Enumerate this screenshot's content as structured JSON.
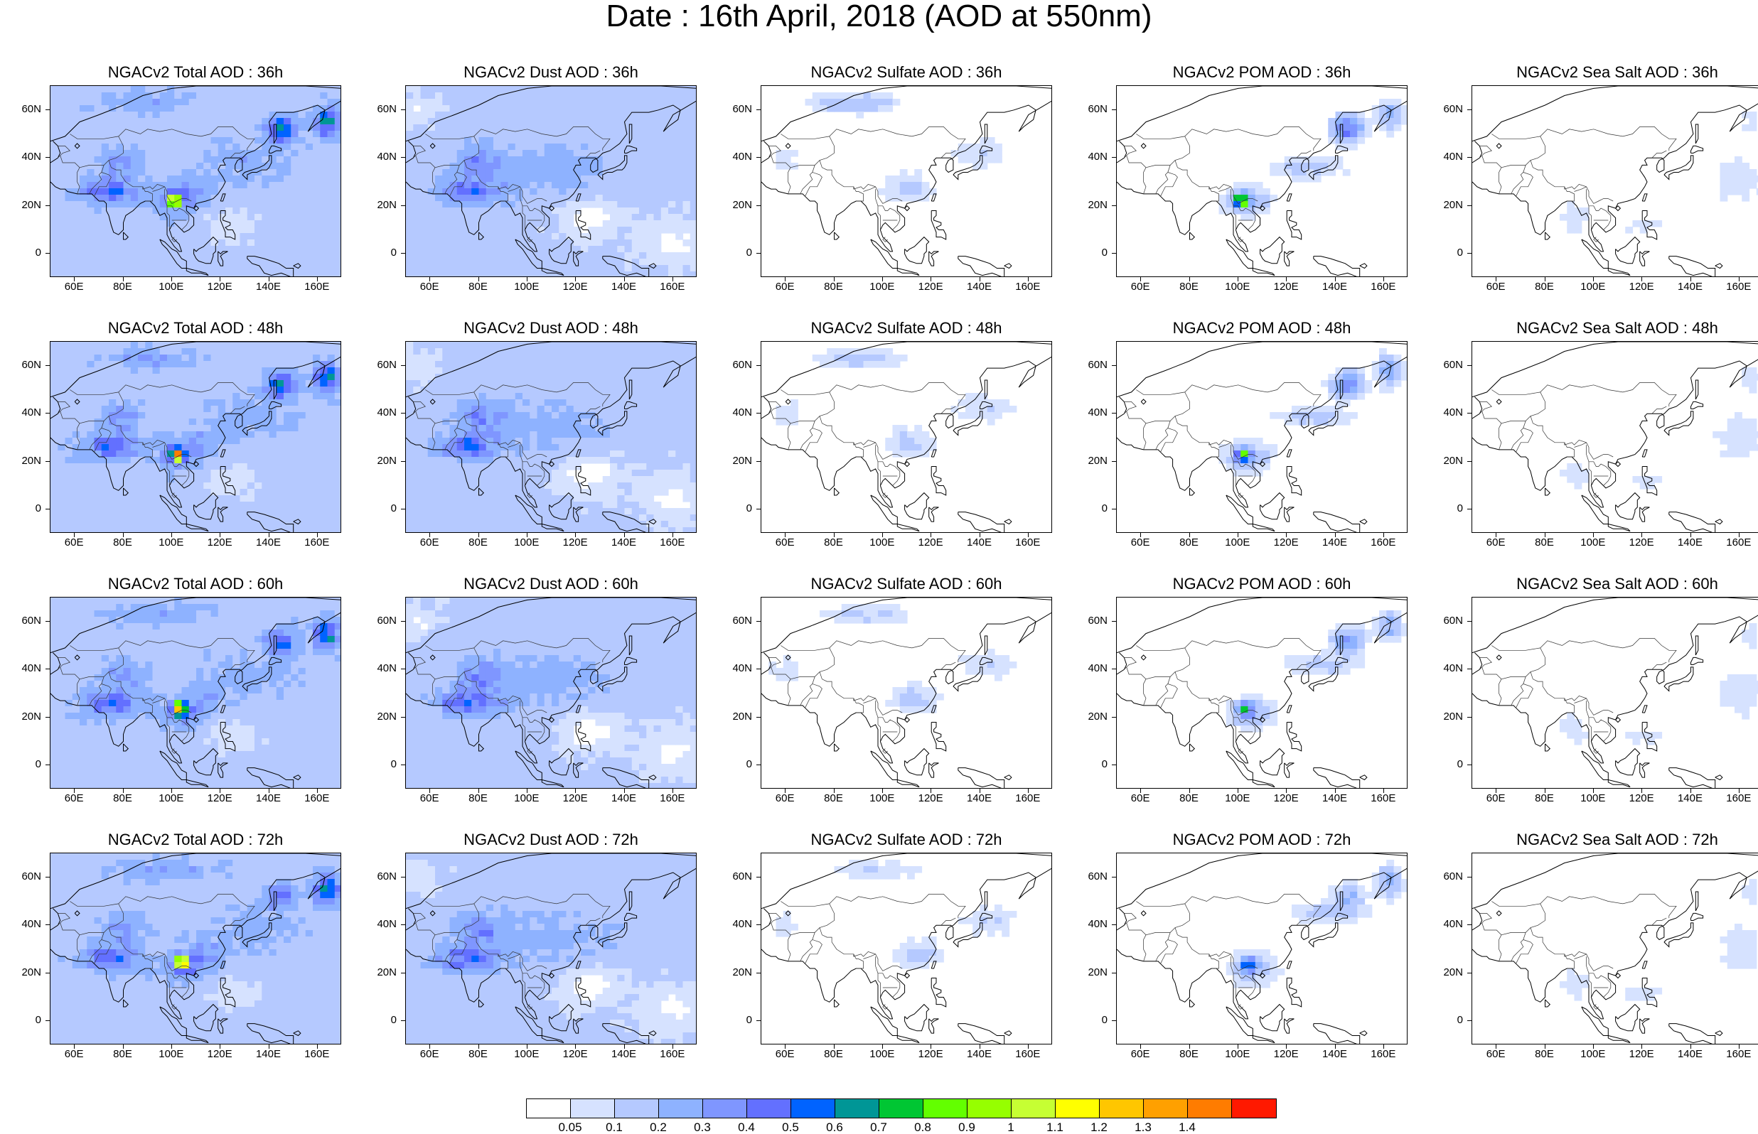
{
  "title": "Date : 16th April, 2018 (AOD at 550nm)",
  "lat_ticks": [
    "60N",
    "40N",
    "20N",
    "0"
  ],
  "lon_ticks": [
    "60E",
    "80E",
    "100E",
    "120E",
    "140E",
    "160E"
  ],
  "panels": [
    {
      "title": "NGACv2 Total AOD : 36h",
      "species": "total"
    },
    {
      "title": "NGACv2 Dust AOD : 36h",
      "species": "dust"
    },
    {
      "title": "NGACv2 Sulfate AOD : 36h",
      "species": "sulfate"
    },
    {
      "title": "NGACv2 POM AOD : 36h",
      "species": "pom"
    },
    {
      "title": "NGACv2 Sea Salt AOD : 36h",
      "species": "seasalt"
    },
    {
      "title": "NGACv2 Total AOD : 48h",
      "species": "total"
    },
    {
      "title": "NGACv2 Dust AOD : 48h",
      "species": "dust"
    },
    {
      "title": "NGACv2 Sulfate AOD : 48h",
      "species": "sulfate"
    },
    {
      "title": "NGACv2 POM AOD : 48h",
      "species": "pom"
    },
    {
      "title": "NGACv2 Sea Salt AOD : 48h",
      "species": "seasalt"
    },
    {
      "title": "NGACv2 Total AOD : 60h",
      "species": "total"
    },
    {
      "title": "NGACv2 Dust AOD : 60h",
      "species": "dust"
    },
    {
      "title": "NGACv2 Sulfate AOD : 60h",
      "species": "sulfate"
    },
    {
      "title": "NGACv2 POM AOD : 60h",
      "species": "pom"
    },
    {
      "title": "NGACv2 Sea Salt AOD : 60h",
      "species": "seasalt"
    },
    {
      "title": "NGACv2 Total AOD : 72h",
      "species": "total"
    },
    {
      "title": "NGACv2 Dust AOD : 72h",
      "species": "dust"
    },
    {
      "title": "NGACv2 Sulfate AOD : 72h",
      "species": "sulfate"
    },
    {
      "title": "NGACv2 POM AOD : 72h",
      "species": "pom"
    },
    {
      "title": "NGACv2 Sea Salt  AOD : 72h",
      "species": "seasalt"
    }
  ],
  "colorbar": {
    "colors": [
      "#ffffff",
      "#d6e2ff",
      "#b5c9ff",
      "#8eb2ff",
      "#7f96ff",
      "#6370ff",
      "#0063ff",
      "#009696",
      "#00c633",
      "#63ff00",
      "#96ff00",
      "#c6ff33",
      "#ffff00",
      "#ffc600",
      "#ffa000",
      "#ff7c00",
      "#ff1900"
    ],
    "labels": [
      "0.05",
      "0.1",
      "0.2",
      "0.3",
      "0.4",
      "0.5",
      "0.6",
      "0.7",
      "0.8",
      "0.9",
      "1",
      "1.1",
      "1.2",
      "1.3",
      "1.4"
    ]
  }
}
